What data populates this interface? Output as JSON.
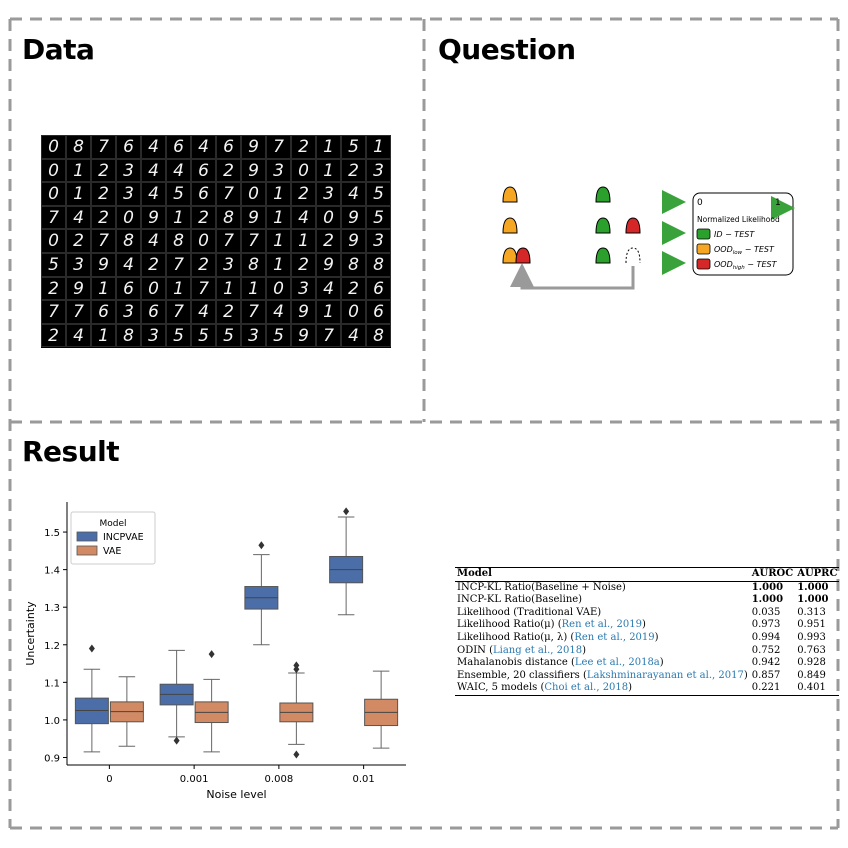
{
  "panels": {
    "data_title": "Data",
    "question_title": "Question",
    "result_title": "Result"
  },
  "mnist_rows": [
    "0876464697215146",
    "0123446293012340",
    "0123456701234500",
    "7420912891409500",
    "0278480771129366",
    "5394272381298870",
    "2916017110342640",
    "7763674274910680",
    "2418355535974850"
  ],
  "question_legend": {
    "scale_start": "0",
    "scale_end": "1",
    "title": "Normalized Likelihood",
    "items": [
      {
        "color": "#2ca02c",
        "label_main": "ID − TEST",
        "label_sub": ""
      },
      {
        "color": "#f5a623",
        "label_main": "OOD",
        "label_sub": "low",
        "label_tail": " − TEST"
      },
      {
        "color": "#d62728",
        "label_main": "OOD",
        "label_sub": "high",
        "label_tail": " − TEST"
      }
    ]
  },
  "chart_data": {
    "type": "box",
    "xlabel": "Noise level",
    "ylabel": "Uncertainty",
    "categories": [
      "0",
      "0.001",
      "0.008",
      "0.01"
    ],
    "ylim": [
      0.88,
      1.58
    ],
    "yticks": [
      "0.9",
      "1.0",
      "1.1",
      "1.2",
      "1.3",
      "1.4",
      "1.5"
    ],
    "legend_title": "Model",
    "legend_position": "top-left",
    "series": [
      {
        "name": "INCPVAE",
        "color": "#4c6ea8",
        "boxes": [
          {
            "whislo": 0.915,
            "q1": 0.99,
            "med": 1.025,
            "q3": 1.058,
            "whishi": 1.135,
            "fliers": [
              1.19
            ]
          },
          {
            "whislo": 0.955,
            "q1": 1.04,
            "med": 1.068,
            "q3": 1.095,
            "whishi": 1.185,
            "fliers": [
              0.945
            ]
          },
          {
            "whislo": 1.2,
            "q1": 1.295,
            "med": 1.325,
            "q3": 1.355,
            "whishi": 1.44,
            "fliers": [
              1.465
            ]
          },
          {
            "whislo": 1.28,
            "q1": 1.365,
            "med": 1.4,
            "q3": 1.435,
            "whishi": 1.54,
            "fliers": [
              1.555
            ]
          }
        ]
      },
      {
        "name": "VAE",
        "color": "#d18a63",
        "boxes": [
          {
            "whislo": 0.93,
            "q1": 0.995,
            "med": 1.022,
            "q3": 1.048,
            "whishi": 1.115,
            "fliers": []
          },
          {
            "whislo": 0.915,
            "q1": 0.993,
            "med": 1.02,
            "q3": 1.048,
            "whishi": 1.108,
            "fliers": [
              1.175
            ]
          },
          {
            "whislo": 0.935,
            "q1": 0.995,
            "med": 1.02,
            "q3": 1.045,
            "whishi": 1.125,
            "fliers": [
              0.908,
              1.135,
              1.145
            ]
          },
          {
            "whislo": 0.925,
            "q1": 0.985,
            "med": 1.02,
            "q3": 1.055,
            "whishi": 1.13,
            "fliers": []
          }
        ]
      }
    ]
  },
  "table": {
    "headers": [
      "Model",
      "AUROC",
      "AUPRC"
    ],
    "rows": [
      {
        "model": "INCP-KL Ratio(Baseline + Noise)",
        "cite": "",
        "auroc": "1.000",
        "auprc": "1.000",
        "bold": true
      },
      {
        "model": "INCP-KL Ratio(Baseline)",
        "cite": "",
        "auroc": "1.000",
        "auprc": "1.000",
        "bold": true
      },
      {
        "model": "Likelihood (Traditional VAE)",
        "cite": "",
        "auroc": "0.035",
        "auprc": "0.313",
        "bold": false
      },
      {
        "model": "Likelihood Ratio(μ) (",
        "cite": "Ren et al., 2019",
        "auroc": "0.973",
        "auprc": "0.951",
        "bold": false
      },
      {
        "model": "Likelihood Ratio(μ, λ) (",
        "cite": "Ren et al., 2019",
        "auroc": "0.994",
        "auprc": "0.993",
        "bold": false
      },
      {
        "model": "ODIN  (",
        "cite": "Liang et al., 2018",
        "auroc": "0.752",
        "auprc": "0.763",
        "bold": false
      },
      {
        "model": "Mahalanobis distance (",
        "cite": "Lee et al., 2018a",
        "auroc": "0.942",
        "auprc": "0.928",
        "bold": false
      },
      {
        "model": "Ensemble, 20 classifiers (",
        "cite": "Lakshminarayanan et al., 2017",
        "auroc": "0.857",
        "auprc": "0.849",
        "bold": false
      },
      {
        "model": "WAIC, 5 models  (",
        "cite": "Choi et al., 2018",
        "auroc": "0.221",
        "auprc": "0.401",
        "bold": false
      }
    ]
  }
}
